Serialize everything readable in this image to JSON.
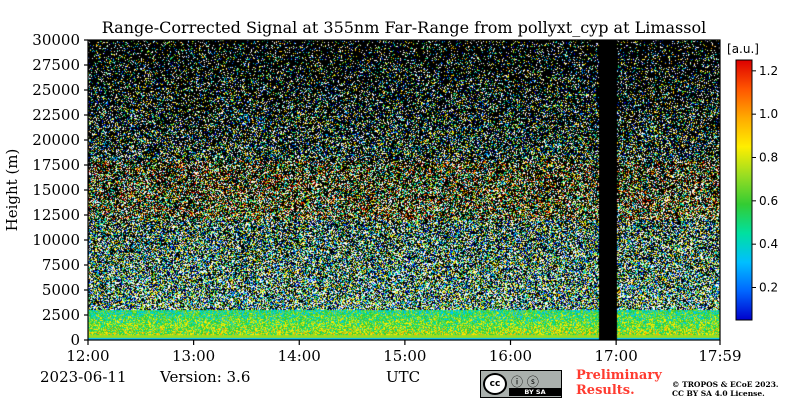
{
  "chart_data": {
    "type": "heatmap",
    "title": "Range-Corrected Signal at 355nm Far-Range from pollyxt_cyp at Limassol",
    "xlabel": "UTC",
    "ylabel": "Height (m)",
    "x_range": [
      "12:00",
      "17:59"
    ],
    "ylim": [
      0,
      30000
    ],
    "x_ticks": [
      "12:00",
      "13:00",
      "14:00",
      "15:00",
      "16:00",
      "17:00",
      "17:59"
    ],
    "y_ticks": [
      0,
      2500,
      5000,
      7500,
      10000,
      12500,
      15000,
      17500,
      20000,
      22500,
      25000,
      27500,
      30000
    ],
    "colorbar": {
      "label": "[a.u.]",
      "range": [
        0.05,
        1.25
      ],
      "ticks": [
        "0.2",
        "0.4",
        "0.6",
        "0.8",
        "1.0",
        "1.2"
      ],
      "colormap": [
        "#0000cc",
        "#0066ff",
        "#00bfff",
        "#00e0a0",
        "#33cc33",
        "#99dd22",
        "#ffee00",
        "#ffaa00",
        "#ff5500",
        "#dd0000"
      ]
    },
    "no_data_interval": [
      "16:50",
      "17:00"
    ],
    "background_noise_above_m": 3000
  },
  "footer": {
    "date": "2023-06-11",
    "version": "Version: 3.6",
    "utc_label": "UTC",
    "preliminary_line1": "Preliminary",
    "preliminary_line2": "Results.",
    "copyright_line1": "© TROPOS & ECoE 2023.",
    "copyright_line2": "CC BY SA 4.0 License.",
    "cc_badge_left": "cc",
    "cc_badge_icons": "ⓘ ⓢ",
    "cc_badge_strip": "BY    SA"
  }
}
